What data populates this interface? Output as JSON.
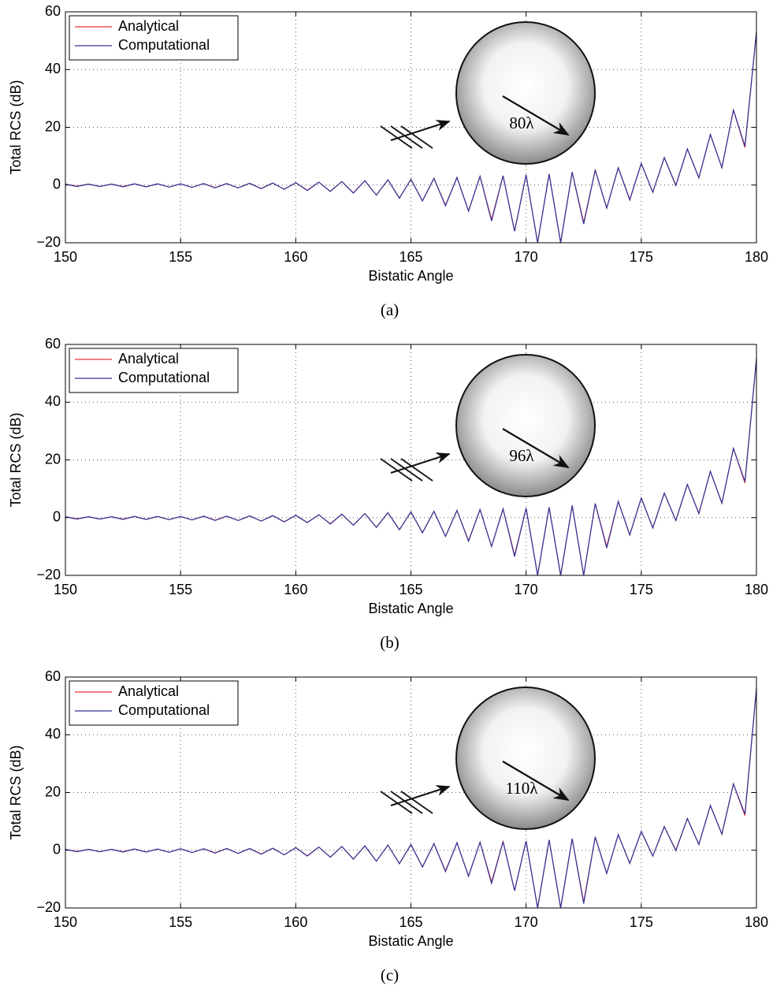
{
  "chart_data": [
    {
      "type": "line",
      "xlabel": "Bistatic Angle",
      "ylabel": "Total RCS (dB)",
      "annotation": "80λ",
      "caption": "(a)",
      "xlim": [
        150,
        180
      ],
      "ylim": [
        -20,
        60
      ],
      "xticks": [
        150,
        155,
        160,
        165,
        170,
        175,
        180
      ],
      "yticks": [
        {
          "value": -20,
          "label": "−20"
        },
        0,
        20,
        40,
        60
      ],
      "grid": true,
      "legend": "upper left",
      "x": [
        150,
        150.5,
        151,
        151.5,
        152,
        152.5,
        153,
        153.5,
        154,
        154.5,
        155,
        155.5,
        156,
        156.5,
        157,
        157.5,
        158,
        158.5,
        159,
        159.5,
        160,
        160.5,
        161,
        161.5,
        162,
        162.5,
        163,
        163.5,
        164,
        164.5,
        165,
        165.5,
        166,
        166.5,
        167,
        167.5,
        168,
        168.5,
        169,
        169.5,
        170,
        170.5,
        171,
        171.5,
        172,
        172.5,
        173,
        173.5,
        174,
        174.5,
        175,
        175.5,
        176,
        176.5,
        177,
        177.5,
        178,
        178.5,
        179,
        179.5,
        180
      ],
      "series": [
        {
          "name": "Analytical",
          "color": "#e8303a",
          "values": [
            0.3,
            -0.4,
            0.3,
            -0.5,
            0.3,
            -0.5,
            0.4,
            -0.6,
            0.4,
            -0.7,
            0.4,
            -0.8,
            0.5,
            -0.9,
            0.5,
            -1.0,
            0.6,
            -1.2,
            0.7,
            -1.5,
            0.8,
            -1.8,
            1.0,
            -2.2,
            1.2,
            -2.7,
            1.5,
            -3.5,
            1.8,
            -4.5,
            2.0,
            -5.5,
            2.3,
            -7,
            2.6,
            -9,
            3.0,
            -12,
            3.2,
            -16,
            3.5,
            -20,
            3.8,
            -20,
            4.5,
            -13,
            5.2,
            -8,
            6.0,
            -5,
            7.5,
            -2.5,
            9.5,
            0,
            12.5,
            2.5,
            17.5,
            6,
            26,
            13,
            53
          ]
        },
        {
          "name": "Computational",
          "color": "#33339a",
          "values": [
            0.3,
            -0.5,
            0.3,
            -0.5,
            0.3,
            -0.6,
            0.4,
            -0.6,
            0.4,
            -0.7,
            0.4,
            -0.8,
            0.5,
            -1.0,
            0.5,
            -1.0,
            0.6,
            -1.3,
            0.7,
            -1.5,
            0.8,
            -1.9,
            1.0,
            -2.2,
            1.2,
            -2.8,
            1.5,
            -3.5,
            1.8,
            -4.6,
            2.0,
            -5.5,
            2.3,
            -7.2,
            2.6,
            -9,
            3.0,
            -12.5,
            3.2,
            -16,
            3.5,
            -20,
            3.8,
            -20,
            4.5,
            -13.5,
            5.2,
            -8,
            6.0,
            -5.2,
            7.5,
            -2.5,
            9.5,
            -0.2,
            12.5,
            2.5,
            17.5,
            6,
            26,
            13.5,
            53
          ]
        }
      ]
    },
    {
      "type": "line",
      "xlabel": "Bistatic Angle",
      "ylabel": "Total RCS (dB)",
      "annotation": "96λ",
      "caption": "(b)",
      "xlim": [
        150,
        180
      ],
      "ylim": [
        -20,
        60
      ],
      "xticks": [
        150,
        155,
        160,
        165,
        170,
        175,
        180
      ],
      "yticks": [
        {
          "value": -20,
          "label": "−20"
        },
        0,
        20,
        40,
        60
      ],
      "grid": true,
      "legend": "upper left",
      "x": [
        150,
        150.5,
        151,
        151.5,
        152,
        152.5,
        153,
        153.5,
        154,
        154.5,
        155,
        155.5,
        156,
        156.5,
        157,
        157.5,
        158,
        158.5,
        159,
        159.5,
        160,
        160.5,
        161,
        161.5,
        162,
        162.5,
        163,
        163.5,
        164,
        164.5,
        165,
        165.5,
        166,
        166.5,
        167,
        167.5,
        168,
        168.5,
        169,
        169.5,
        170,
        170.5,
        171,
        171.5,
        172,
        172.5,
        173,
        173.5,
        174,
        174.5,
        175,
        175.5,
        176,
        176.5,
        177,
        177.5,
        178,
        178.5,
        179,
        179.5,
        180
      ],
      "series": [
        {
          "name": "Analytical",
          "color": "#e8303a",
          "values": [
            0.3,
            -0.4,
            0.3,
            -0.5,
            0.3,
            -0.5,
            0.4,
            -0.6,
            0.4,
            -0.7,
            0.4,
            -0.8,
            0.5,
            -0.9,
            0.5,
            -1.0,
            0.6,
            -1.2,
            0.7,
            -1.4,
            0.8,
            -1.7,
            1.0,
            -2.1,
            1.2,
            -2.6,
            1.4,
            -3.3,
            1.7,
            -4.2,
            2.0,
            -5.2,
            2.2,
            -6.5,
            2.5,
            -8,
            2.8,
            -10,
            3.0,
            -13,
            3.3,
            -20,
            3.6,
            -20,
            4.2,
            -20,
            4.9,
            -10,
            5.6,
            -6,
            6.8,
            -3.5,
            8.5,
            -1,
            11.5,
            1.5,
            16,
            5,
            24,
            12,
            55
          ]
        },
        {
          "name": "Computational",
          "color": "#33339a",
          "values": [
            0.3,
            -0.5,
            0.3,
            -0.5,
            0.3,
            -0.6,
            0.4,
            -0.6,
            0.4,
            -0.7,
            0.4,
            -0.8,
            0.5,
            -1.0,
            0.5,
            -1.0,
            0.6,
            -1.2,
            0.7,
            -1.5,
            0.8,
            -1.7,
            1.0,
            -2.2,
            1.2,
            -2.6,
            1.4,
            -3.4,
            1.7,
            -4.2,
            2.0,
            -5.3,
            2.2,
            -6.5,
            2.5,
            -8.2,
            2.8,
            -10,
            3.0,
            -13.5,
            3.3,
            -20,
            3.6,
            -20,
            4.2,
            -20,
            4.9,
            -10.5,
            5.6,
            -6,
            6.8,
            -3.6,
            8.5,
            -1,
            11.5,
            1.4,
            16,
            5,
            24,
            12.5,
            55
          ]
        }
      ]
    },
    {
      "type": "line",
      "xlabel": "Bistatic Angle",
      "ylabel": "Total RCS (dB)",
      "annotation": "110λ",
      "caption": "(c)",
      "xlim": [
        150,
        180
      ],
      "ylim": [
        -20,
        60
      ],
      "xticks": [
        150,
        155,
        160,
        165,
        170,
        175,
        180
      ],
      "yticks": [
        {
          "value": -20,
          "label": "−20"
        },
        0,
        20,
        40,
        60
      ],
      "grid": true,
      "legend": "upper left",
      "x": [
        150,
        150.5,
        151,
        151.5,
        152,
        152.5,
        153,
        153.5,
        154,
        154.5,
        155,
        155.5,
        156,
        156.5,
        157,
        157.5,
        158,
        158.5,
        159,
        159.5,
        160,
        160.5,
        161,
        161.5,
        162,
        162.5,
        163,
        163.5,
        164,
        164.5,
        165,
        165.5,
        166,
        166.5,
        167,
        167.5,
        168,
        168.5,
        169,
        169.5,
        170,
        170.5,
        171,
        171.5,
        172,
        172.5,
        173,
        173.5,
        174,
        174.5,
        175,
        175.5,
        176,
        176.5,
        177,
        177.5,
        178,
        178.5,
        179,
        179.5,
        180
      ],
      "series": [
        {
          "name": "Analytical",
          "color": "#e8303a",
          "values": [
            0.3,
            -0.4,
            0.3,
            -0.5,
            0.3,
            -0.5,
            0.4,
            -0.6,
            0.4,
            -0.7,
            0.5,
            -0.8,
            0.5,
            -0.9,
            0.6,
            -1.1,
            0.6,
            -1.3,
            0.7,
            -1.6,
            0.9,
            -1.9,
            1.1,
            -2.4,
            1.3,
            -3,
            1.5,
            -3.8,
            1.8,
            -4.6,
            2.0,
            -5.8,
            2.3,
            -7.2,
            2.6,
            -9,
            2.8,
            -11,
            3.0,
            -14,
            3.2,
            -20,
            3.6,
            -20,
            4.0,
            -18,
            4.6,
            -8,
            5.4,
            -4.5,
            6.5,
            -2,
            8.2,
            0,
            11,
            2,
            15.5,
            5.5,
            23,
            12,
            56
          ]
        },
        {
          "name": "Computational",
          "color": "#33339a",
          "values": [
            0.3,
            -0.5,
            0.3,
            -0.5,
            0.3,
            -0.6,
            0.4,
            -0.6,
            0.4,
            -0.7,
            0.5,
            -0.8,
            0.5,
            -1.0,
            0.6,
            -1.1,
            0.6,
            -1.4,
            0.7,
            -1.6,
            0.9,
            -2.0,
            1.1,
            -2.4,
            1.3,
            -3.1,
            1.5,
            -3.8,
            1.8,
            -4.7,
            2.0,
            -5.8,
            2.3,
            -7.4,
            2.6,
            -9,
            2.8,
            -11.5,
            3.0,
            -14,
            3.2,
            -20,
            3.6,
            -20,
            4.0,
            -18.5,
            4.6,
            -8,
            5.4,
            -4.6,
            6.5,
            -2,
            8.2,
            -0.2,
            11,
            2,
            15.5,
            5.6,
            23,
            12.5,
            56
          ]
        }
      ]
    }
  ]
}
